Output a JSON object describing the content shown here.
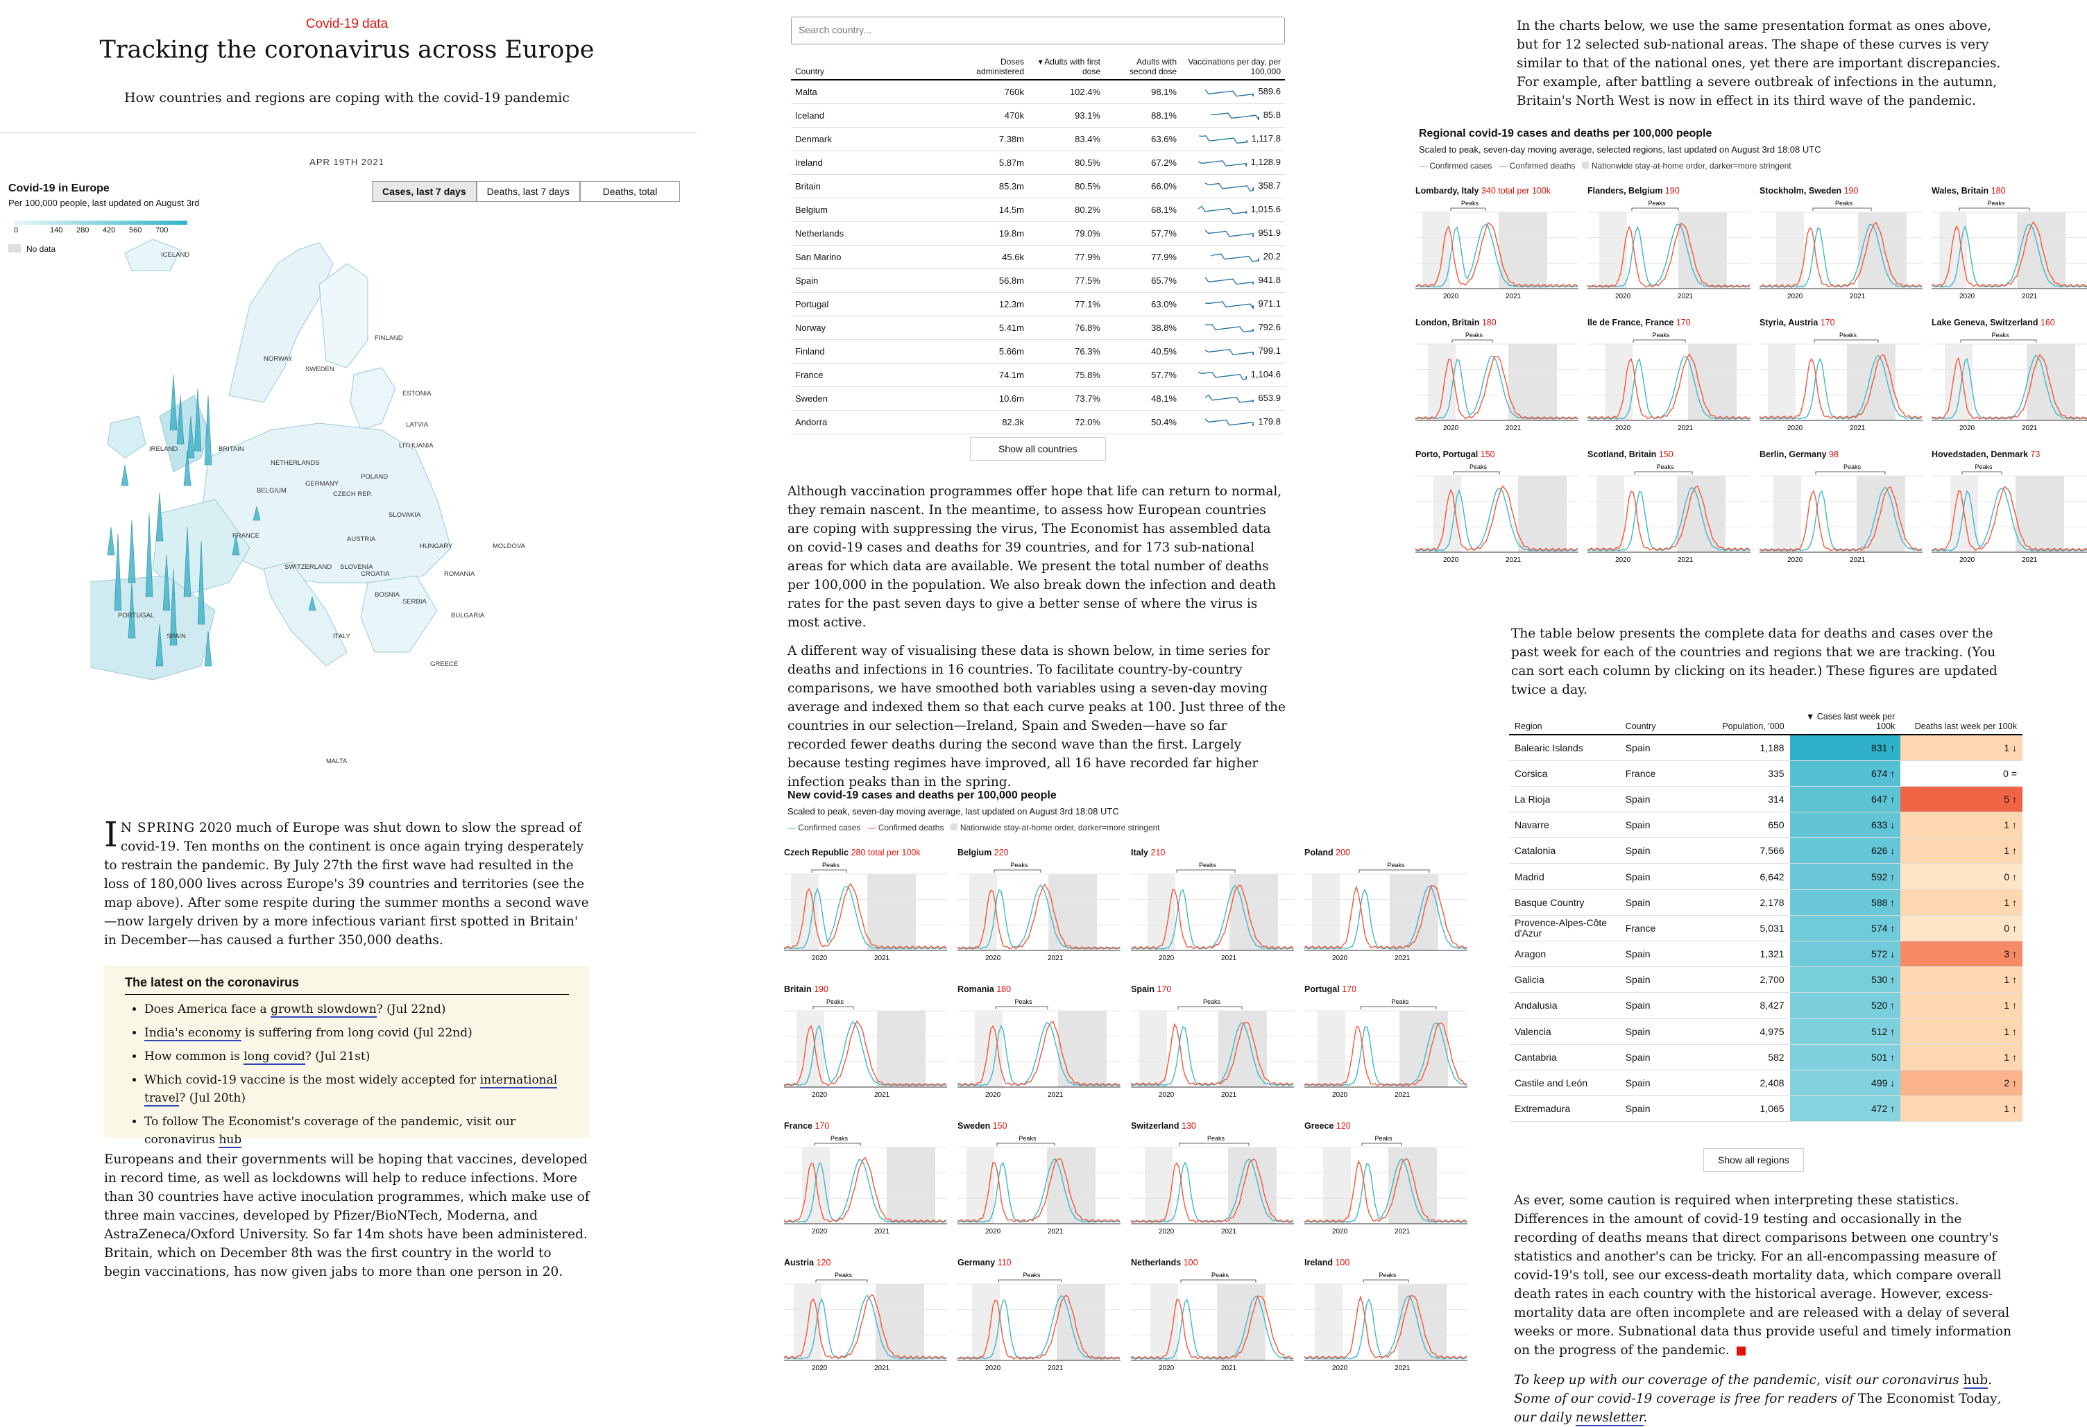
{
  "header": {
    "kicker": "Covid-19 data",
    "title": "Tracking the coronavirus across Europe",
    "subtitle": "How countries and regions are coping with the covid-19 pandemic",
    "date": "APR 19TH 2021"
  },
  "map": {
    "title": "Covid-19 in Europe",
    "subtitle": "Per 100,000 people, last updated on August 3rd",
    "legend_ticks": [
      "0",
      "140",
      "280",
      "420",
      "560",
      "700"
    ],
    "no_data": "No data",
    "tabs": [
      "Cases, last 7 days",
      "Deaths, last 7 days",
      "Deaths, total"
    ],
    "active_tab": 0,
    "country_labels": [
      "ICELAND",
      "FINLAND",
      "NORWAY",
      "SWEDEN",
      "ESTONIA",
      "LATVIA",
      "LITHUANIA",
      "IRELAND",
      "BRITAIN",
      "NETHERLANDS",
      "GERMANY",
      "POLAND",
      "BELGIUM",
      "CZECH REP.",
      "SLOVAKIA",
      "FRANCE",
      "AUSTRIA",
      "HUNGARY",
      "MOLDOVA",
      "SWITZERLAND",
      "SLOVENIA",
      "CROATIA",
      "ROMANIA",
      "BOSNIA",
      "SERBIA",
      "PORTUGAL",
      "SPAIN",
      "ITALY",
      "BULGARIA",
      "GREECE",
      "MALTA"
    ]
  },
  "intro": {
    "dropcap": "I",
    "para1_lead": "N SPRING",
    "para1": " 2020 much of Europe was shut down to slow the spread of covid-19. Ten months on the continent is once again trying desperately to restrain the pandemic. By July 27th the first wave had resulted in the loss of 180,000 lives across Europe's 39 countries and territories (see the map above). After some respite during the summer months a second wave—now largely driven by a more infectious variant first spotted in Britain' in December—has caused a further 350,000 deaths.",
    "para2": "Europeans and their governments will be hoping that vaccines, developed in record time, as well as lockdowns will help to reduce infections. More than 30 countries have active inoculation programmes, which make use of three main vaccines, developed by Pfizer/BioNTech, Moderna, and AstraZeneca/Oxford University. So far 14m shots have been administered. Britain, which on December 8th was the first country in the world to begin vaccinations, has now given jabs to more than one person in 20."
  },
  "latest": {
    "heading": "The latest on the coronavirus",
    "items": [
      {
        "pre": "Does America face a ",
        "link": "growth slowdown",
        "post": "? (Jul 22nd)"
      },
      {
        "pre": "",
        "link": "India's economy",
        "post": " is suffering from long covid (Jul 22nd)"
      },
      {
        "pre": "How common is ",
        "link": "long covid",
        "post": "? (Jul 21st)"
      },
      {
        "pre": "Which covid-19 vaccine is the most widely accepted for ",
        "link": "international travel",
        "post": "? (Jul 20th)"
      },
      {
        "pre": "To follow The Economist's coverage of the pandemic, visit our coronavirus ",
        "link": "hub",
        "post": ""
      }
    ]
  },
  "vax": {
    "search_placeholder": "Search country...",
    "headers": [
      "Country",
      "Doses administered",
      "▾ Adults with first dose",
      "Adults with second dose",
      "Vaccinations per day, per 100,000"
    ],
    "rows": [
      [
        "Malta",
        "760k",
        "102.4%",
        "98.1%",
        "589.6"
      ],
      [
        "Iceland",
        "470k",
        "93.1%",
        "88.1%",
        "85.8"
      ],
      [
        "Denmark",
        "7.38m",
        "83.4%",
        "63.6%",
        "1,117.8"
      ],
      [
        "Ireland",
        "5.87m",
        "80.5%",
        "67.2%",
        "1,128.9"
      ],
      [
        "Britain",
        "85.3m",
        "80.5%",
        "66.0%",
        "358.7"
      ],
      [
        "Belgium",
        "14.5m",
        "80.2%",
        "68.1%",
        "1,015.6"
      ],
      [
        "Netherlands",
        "19.8m",
        "79.0%",
        "57.7%",
        "951.9"
      ],
      [
        "San Marino",
        "45.6k",
        "77.9%",
        "77.9%",
        "20.2"
      ],
      [
        "Spain",
        "56.8m",
        "77.5%",
        "65.7%",
        "941.8"
      ],
      [
        "Portugal",
        "12.3m",
        "77.1%",
        "63.0%",
        "971.1"
      ],
      [
        "Norway",
        "5.41m",
        "76.8%",
        "38.8%",
        "792.6"
      ],
      [
        "Finland",
        "5.66m",
        "76.3%",
        "40.5%",
        "799.1"
      ],
      [
        "France",
        "74.1m",
        "75.8%",
        "57.7%",
        "1,104.6"
      ],
      [
        "Sweden",
        "10.6m",
        "73.7%",
        "48.1%",
        "653.9"
      ],
      [
        "Andorra",
        "82.3k",
        "72.0%",
        "50.4%",
        "179.8"
      ]
    ],
    "show_all": "Show all countries"
  },
  "mid_text": {
    "para1": "Although vaccination programmes offer hope that life can return to normal, they remain nascent. In the meantime, to assess how European countries are coping with suppressing the virus, The Economist has assembled data on covid-19 cases and deaths for 39 countries, and for 173 sub-national areas for which data are available. We present the total number of deaths per 100,000 in the population. We also break down the infection and death rates for the past seven days to give a better sense of where the virus is most active.",
    "para2": "A different way of visualising these data is shown below, in time series for deaths and infections in 16 countries. To facilitate country-by-country comparisons, we have smoothed both variables using a seven-day moving average and indexed them so that each curve peaks at 100. Just three of the countries in our selection—Ireland, Spain and Sweden—have so far recorded fewer deaths during the second wave than the first. Largely because testing regimes have improved, all 16 have recorded far higher infection peaks than in the spring."
  },
  "country_charts": {
    "title": "New covid-19 cases and deaths per 100,000 people",
    "subtitle": "Scaled to peak, seven-day moving average, last updated on August 3rd 18:08 UTC",
    "legend": [
      "Confirmed cases",
      "Confirmed deaths",
      "Nationwide stay-at-home order, darker=more stringent"
    ],
    "peaks_label": "Peaks",
    "x_ticks": [
      "2020",
      "2021"
    ],
    "panels": [
      {
        "name": "Czech Republic",
        "value": "280 total per 100k"
      },
      {
        "name": "Belgium",
        "value": "220"
      },
      {
        "name": "Italy",
        "value": "210"
      },
      {
        "name": "Poland",
        "value": "200"
      },
      {
        "name": "Britain",
        "value": "190"
      },
      {
        "name": "Romania",
        "value": "180"
      },
      {
        "name": "Spain",
        "value": "170"
      },
      {
        "name": "Portugal",
        "value": "170"
      },
      {
        "name": "France",
        "value": "170"
      },
      {
        "name": "Sweden",
        "value": "150"
      },
      {
        "name": "Switzerland",
        "value": "130"
      },
      {
        "name": "Greece",
        "value": "120"
      },
      {
        "name": "Austria",
        "value": "120"
      },
      {
        "name": "Germany",
        "value": "110"
      },
      {
        "name": "Netherlands",
        "value": "100"
      },
      {
        "name": "Ireland",
        "value": "100"
      }
    ]
  },
  "col3_intro": "In the charts below, we use the same presentation format as ones above, but for 12 selected sub-national areas. The shape of these curves is very similar to that of the national ones, yet there are important discrepancies. For example, after battling a severe outbreak of infections in the autumn, Britain's North West is now in effect in its third wave of the pandemic.",
  "region_charts": {
    "title": "Regional covid-19 cases and deaths per 100,000 people",
    "subtitle": "Scaled to peak, seven-day moving average, selected regions, last updated on August 3rd 18:08 UTC",
    "legend": [
      "Confirmed cases",
      "Confirmed deaths",
      "Nationwide stay-at-home order, darker=more stringent"
    ],
    "peaks_label": "Peaks",
    "x_ticks": [
      "2020",
      "2021"
    ],
    "panels": [
      {
        "name": "Lombardy, Italy",
        "value": "340 total per 100k"
      },
      {
        "name": "Flanders, Belgium",
        "value": "190"
      },
      {
        "name": "Stockholm, Sweden",
        "value": "190"
      },
      {
        "name": "Wales, Britain",
        "value": "180"
      },
      {
        "name": "London, Britain",
        "value": "180"
      },
      {
        "name": "Ile de France, France",
        "value": "170"
      },
      {
        "name": "Styria, Austria",
        "value": "170"
      },
      {
        "name": "Lake Geneva, Switzerland",
        "value": "160"
      },
      {
        "name": "Porto, Portugal",
        "value": "150"
      },
      {
        "name": "Scotland, Britain",
        "value": "150"
      },
      {
        "name": "Berlin, Germany",
        "value": "98"
      },
      {
        "name": "Hovedstaden, Denmark",
        "value": "73"
      }
    ]
  },
  "table_intro": "The table below presents the complete data for deaths and cases over the past week for each of the countries and regions that we are tracking. (You can sort each column by clicking on its header.) These figures are updated twice a day.",
  "region_table": {
    "headers": [
      "Region",
      "Country",
      "Population, '000",
      "▼ Cases last week per 100k",
      "Deaths last week per 100k"
    ],
    "rows": [
      {
        "region": "Balearic Islands",
        "country": "Spain",
        "pop": "1,188",
        "cases": "831 ↑",
        "deaths": "1 ↓",
        "cc": "#2fb2c9",
        "dc": "#fdd7b0"
      },
      {
        "region": "Corsica",
        "country": "France",
        "pop": "335",
        "cases": "674 ↑",
        "deaths": "0 =",
        "cc": "#55c0d3",
        "dc": "#ffffff"
      },
      {
        "region": "La Rioja",
        "country": "Spain",
        "pop": "314",
        "cases": "647 ↑",
        "deaths": "5 ↑",
        "cc": "#5cc3d5",
        "dc": "#f06446"
      },
      {
        "region": "Navarre",
        "country": "Spain",
        "pop": "650",
        "cases": "633 ↓",
        "deaths": "1 ↑",
        "cc": "#62c5d6",
        "dc": "#fdd7b0"
      },
      {
        "region": "Catalonia",
        "country": "Spain",
        "pop": "7,566",
        "cases": "626 ↓",
        "deaths": "1 ↑",
        "cc": "#64c6d7",
        "dc": "#fdd7b0"
      },
      {
        "region": "Madrid",
        "country": "Spain",
        "pop": "6,642",
        "cases": "592 ↑",
        "deaths": "0 ↑",
        "cc": "#6ac8d8",
        "dc": "#fee5c8"
      },
      {
        "region": "Basque Country",
        "country": "Spain",
        "pop": "2,178",
        "cases": "588 ↑",
        "deaths": "1 ↑",
        "cc": "#6bc8d9",
        "dc": "#fdd7b0"
      },
      {
        "region": "Provence-Alpes-Côte d'Azur",
        "country": "France",
        "pop": "5,031",
        "cases": "574 ↑",
        "deaths": "0 ↑",
        "cc": "#6fcada",
        "dc": "#fee5c8"
      },
      {
        "region": "Aragon",
        "country": "Spain",
        "pop": "1,321",
        "cases": "572 ↓",
        "deaths": "3 ↑",
        "cc": "#70cada",
        "dc": "#f58a65"
      },
      {
        "region": "Galicia",
        "country": "Spain",
        "pop": "2,700",
        "cases": "530 ↑",
        "deaths": "1 ↑",
        "cc": "#79cedc",
        "dc": "#fdd7b0"
      },
      {
        "region": "Andalusia",
        "country": "Spain",
        "pop": "8,427",
        "cases": "520 ↑",
        "deaths": "1 ↑",
        "cc": "#7bcfdd",
        "dc": "#fdd7b0"
      },
      {
        "region": "Valencia",
        "country": "Spain",
        "pop": "4,975",
        "cases": "512 ↑",
        "deaths": "1 ↑",
        "cc": "#7dd0de",
        "dc": "#fdd7b0"
      },
      {
        "region": "Cantabria",
        "country": "Spain",
        "pop": "582",
        "cases": "501 ↑",
        "deaths": "1 ↑",
        "cc": "#80d1df",
        "dc": "#fdd7b0"
      },
      {
        "region": "Castile and León",
        "country": "Spain",
        "pop": "2,408",
        "cases": "499 ↓",
        "deaths": "2 ↑",
        "cc": "#81d1df",
        "dc": "#fbb38c"
      },
      {
        "region": "Extremadura",
        "country": "Spain",
        "pop": "1,065",
        "cases": "472 ↑",
        "deaths": "1 ↑",
        "cc": "#86d3e0",
        "dc": "#fdd7b0"
      }
    ],
    "show_all": "Show all regions"
  },
  "outro": {
    "para": "As ever, some caution is required when interpreting these statistics. Differences in the amount of covid-19 testing and occasionally in the recording of deaths means that direct comparisons between one country's statistics and another's can be tricky. For an all-encompassing measure of covid-19's toll, see our excess-death mortality data, which compare overall death rates in each country with the historical average. However, excess-mortality data are often incomplete and are released with a delay of several weeks or more. Subnational data thus provide useful and timely information on the progress of the pandemic.",
    "footer_pre": "To keep up with our coverage of the pandemic, visit our coronavirus ",
    "footer_link1": "hub",
    "footer_mid": ". Some of our covid-19 coverage is free for readers of ",
    "footer_em": "The Economist Today",
    "footer_mid2": ", our daily ",
    "footer_link2": "newsletter",
    "footer_end": "."
  },
  "colors": {
    "accent_red": "#e3120b",
    "cases_blue": "#3fb6cc",
    "deaths_red": "#f0583a",
    "link_blue": "#2e45b8"
  }
}
